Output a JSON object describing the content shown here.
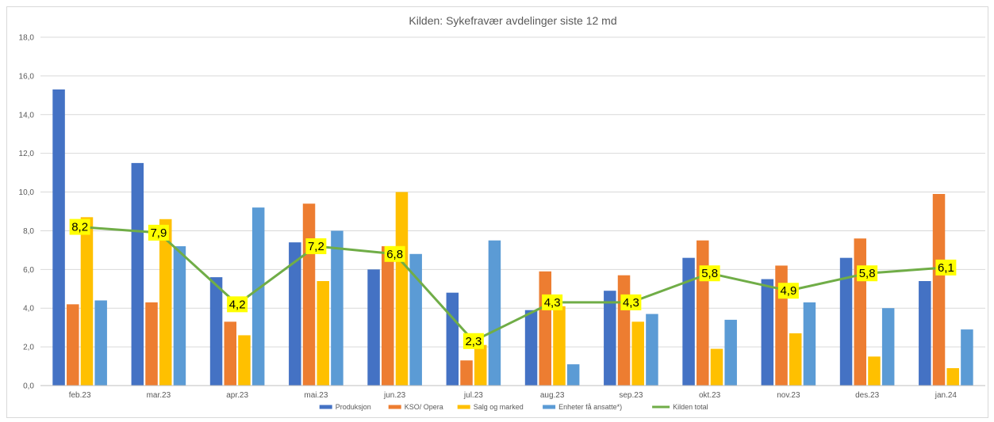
{
  "chart_data": {
    "type": "bar",
    "title": "Kilden: Sykefravær avdelinger siste 12 md",
    "categories": [
      "feb.23",
      "mar.23",
      "apr.23",
      "mai.23",
      "jun.23",
      "jul.23",
      "aug.23",
      "sep.23",
      "okt.23",
      "nov.23",
      "des.23",
      "jan.24"
    ],
    "ylim": [
      0,
      18
    ],
    "yticks": [
      "0,0",
      "2,0",
      "4,0",
      "6,0",
      "8,0",
      "10,0",
      "12,0",
      "14,0",
      "16,0",
      "18,0"
    ],
    "grid": true,
    "legend_position": "bottom",
    "series": [
      {
        "name": "Produksjon",
        "kind": "bar",
        "color": "#4472c4",
        "values": [
          15.3,
          11.5,
          5.6,
          7.4,
          6.0,
          4.8,
          3.9,
          4.9,
          6.6,
          5.5,
          6.6,
          5.4
        ]
      },
      {
        "name": "KSO/ Opera",
        "kind": "bar",
        "color": "#ed7d31",
        "values": [
          4.2,
          4.3,
          3.3,
          9.4,
          7.2,
          1.3,
          5.9,
          5.7,
          7.5,
          6.2,
          7.6,
          9.9
        ]
      },
      {
        "name": "Salg og marked",
        "kind": "bar",
        "color": "#ffc000",
        "values": [
          8.7,
          8.6,
          2.6,
          5.4,
          10.0,
          2.1,
          4.1,
          3.3,
          1.9,
          2.7,
          1.5,
          0.9
        ]
      },
      {
        "name": "Enheter få ansatte*)",
        "kind": "bar",
        "color": "#5b9bd5",
        "values": [
          4.4,
          7.2,
          9.2,
          8.0,
          6.8,
          7.5,
          1.1,
          3.7,
          3.4,
          4.3,
          4.0,
          2.9
        ]
      },
      {
        "name": "Kilden total",
        "kind": "line",
        "color": "#70ad47",
        "values": [
          8.2,
          7.9,
          4.2,
          7.2,
          6.8,
          2.3,
          4.3,
          4.3,
          5.8,
          4.9,
          5.8,
          6.1
        ]
      }
    ],
    "data_labels": [
      "8,2",
      "7,9",
      "4,2",
      "7,2",
      "6,8",
      "2,3",
      "4,3",
      "4,3",
      "5,8",
      "4,9",
      "5,8",
      "6,1"
    ],
    "data_label_background": "#ffff00"
  }
}
